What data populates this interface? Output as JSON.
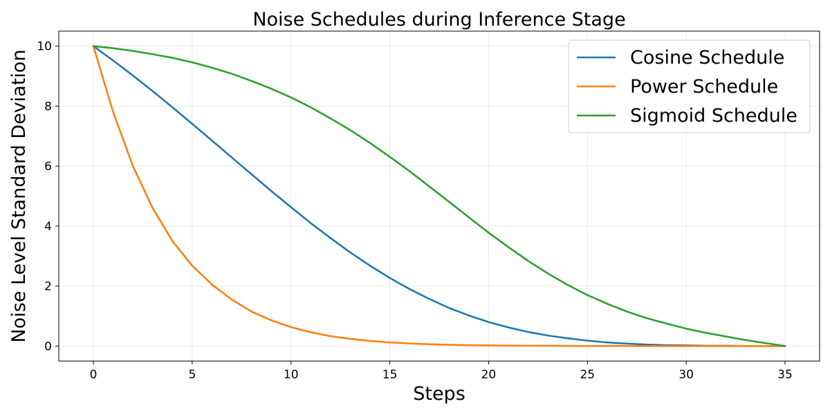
{
  "chart_data": {
    "type": "line",
    "title": "Noise Schedules during Inference Stage",
    "xlabel": "Steps",
    "ylabel": "Noise Level Standard Deviation",
    "xlim": [
      -1.75,
      36.75
    ],
    "ylim": [
      -0.5,
      10.5
    ],
    "xticks": [
      0,
      5,
      10,
      15,
      20,
      25,
      30,
      35
    ],
    "yticks": [
      0,
      2,
      4,
      6,
      8,
      10
    ],
    "grid": true,
    "legend_position": "top-right",
    "x": [
      0,
      1,
      2,
      3,
      4,
      5,
      6,
      7,
      8,
      9,
      10,
      11,
      12,
      13,
      14,
      15,
      16,
      17,
      18,
      19,
      20,
      21,
      22,
      23,
      24,
      25,
      26,
      27,
      28,
      29,
      30,
      31,
      32,
      33,
      34,
      35
    ],
    "series": [
      {
        "name": "Cosine Schedule",
        "color": "#1f77b4",
        "values": [
          10.0,
          9.52,
          9.02,
          8.5,
          7.96,
          7.41,
          6.85,
          6.29,
          5.73,
          5.17,
          4.63,
          4.1,
          3.6,
          3.12,
          2.68,
          2.27,
          1.9,
          1.57,
          1.27,
          1.02,
          0.8,
          0.62,
          0.47,
          0.35,
          0.26,
          0.18,
          0.12,
          0.08,
          0.05,
          0.03,
          0.02,
          0.01,
          0.01,
          0.0,
          0.0,
          0.0
        ]
      },
      {
        "name": "Power Schedule",
        "color": "#ff7f0e",
        "values": [
          10.0,
          7.8,
          6.0,
          4.6,
          3.5,
          2.68,
          2.05,
          1.55,
          1.15,
          0.86,
          0.63,
          0.46,
          0.33,
          0.24,
          0.17,
          0.12,
          0.085,
          0.06,
          0.045,
          0.03,
          0.02,
          0.015,
          0.01,
          0.008,
          0.005,
          0.004,
          0.003,
          0.002,
          0.001,
          0.001,
          0.0,
          0.0,
          0.0,
          0.0,
          0.0,
          0.0
        ]
      },
      {
        "name": "Sigmoid Schedule",
        "color": "#2ca02c",
        "values": [
          10.0,
          9.93,
          9.84,
          9.73,
          9.61,
          9.46,
          9.28,
          9.08,
          8.84,
          8.58,
          8.29,
          7.96,
          7.59,
          7.2,
          6.77,
          6.31,
          5.83,
          5.32,
          4.81,
          4.29,
          3.78,
          3.3,
          2.84,
          2.42,
          2.04,
          1.7,
          1.41,
          1.15,
          0.93,
          0.75,
          0.58,
          0.44,
          0.32,
          0.2,
          0.1,
          0.0
        ]
      }
    ]
  }
}
